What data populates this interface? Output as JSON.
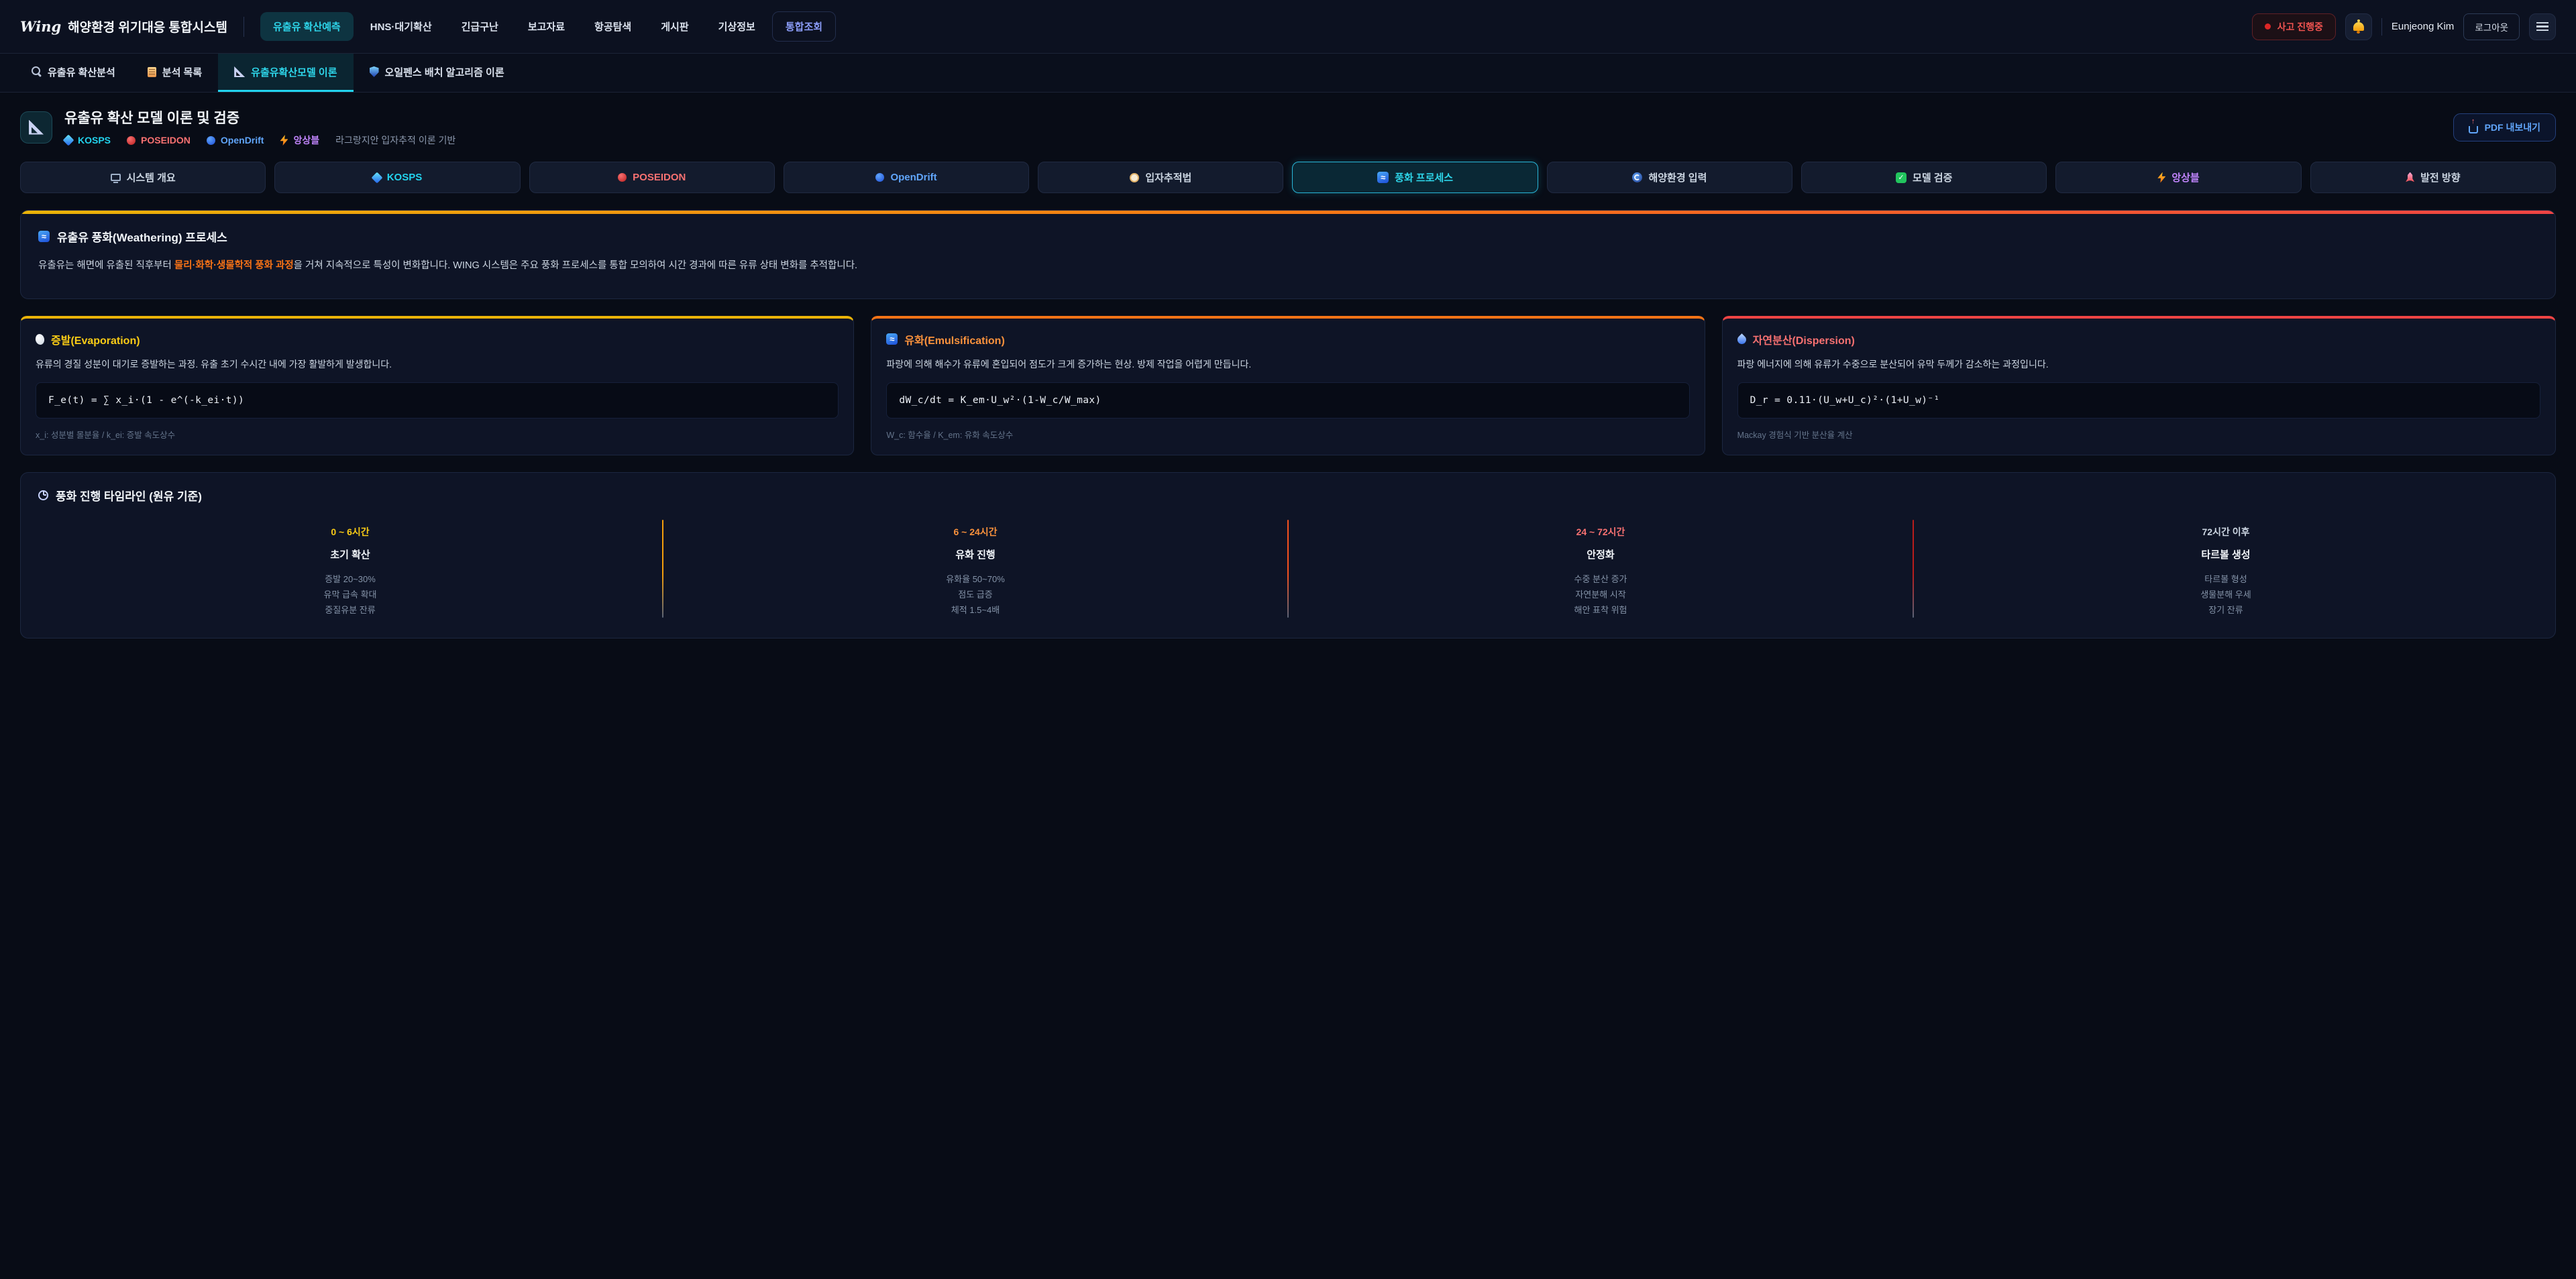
{
  "topnav": {
    "brand": "Wing",
    "system_title": "해양환경 위기대응 통합시스템",
    "items": [
      {
        "label": "유출유 확산예측"
      },
      {
        "label": "HNS·대기확산"
      },
      {
        "label": "긴급구난"
      },
      {
        "label": "보고자료"
      },
      {
        "label": "항공탐색"
      },
      {
        "label": "게시판"
      },
      {
        "label": "기상정보"
      },
      {
        "label": "통합조회"
      }
    ],
    "incident_badge": "사고 진행중",
    "bell_icon": "bell-icon",
    "user_name": "Eunjeong Kim",
    "logout_label": "로그아웃",
    "menu_icon": "hamburger-menu-icon"
  },
  "subnav": {
    "tabs": [
      {
        "icon": "microscope-icon",
        "label": "유출유 확산분석"
      },
      {
        "icon": "notepad-icon",
        "label": "분석 목록"
      },
      {
        "icon": "triangle-ruler-icon",
        "label": "유출유확산모델 이론"
      },
      {
        "icon": "shield-icon",
        "label": "오일펜스 배치 알고리즘 이론"
      }
    ]
  },
  "page_header": {
    "icon": "triangle-ruler-icon",
    "title": "유출유 확산 모델 이론 및 검증",
    "badges": [
      {
        "icon": "diamond-icon",
        "label": "KOSPS",
        "color": "#22d3ee"
      },
      {
        "icon": "red-circle-icon",
        "label": "POSEIDON",
        "color": "#f87171"
      },
      {
        "icon": "blue-circle-icon",
        "label": "OpenDrift",
        "color": "#60a5fa"
      },
      {
        "icon": "lightning-icon",
        "label": "앙상블",
        "color": "#c084fc"
      }
    ],
    "subtitle": "라그랑지안 입자추적 이론 기반",
    "pdf_button": "PDF 내보내기"
  },
  "model_tabs": [
    {
      "icon": "monitor-icon",
      "label": "시스템 개요",
      "color": "#cbd5e1"
    },
    {
      "icon": "diamond-icon",
      "label": "KOSPS",
      "color": "#22d3ee"
    },
    {
      "icon": "red-circle-icon",
      "label": "POSEIDON",
      "color": "#f87171"
    },
    {
      "icon": "blue-circle-icon",
      "label": "OpenDrift",
      "color": "#60a5fa"
    },
    {
      "icon": "compass-icon",
      "label": "입자추적법",
      "color": "#cbd5e1"
    },
    {
      "icon": "wave-icon",
      "label": "풍화 프로세스",
      "color": "#2dd4e8"
    },
    {
      "icon": "swirl-icon",
      "label": "해양환경 입력",
      "color": "#cbd5e1"
    },
    {
      "icon": "check-icon",
      "label": "모델 검증",
      "color": "#cbd5e1"
    },
    {
      "icon": "lightning-icon",
      "label": "앙상블",
      "color": "#c084fc"
    },
    {
      "icon": "rocket-icon",
      "label": "발전 방향",
      "color": "#cbd5e1"
    }
  ],
  "weathering": {
    "icon": "wave-icon",
    "title": "유출유 풍화(Weathering) 프로세스",
    "desc_before": "유출유는 해면에 유출된 직후부터 ",
    "desc_highlight": "물리·화학·생물학적 풍화 과정",
    "desc_after": "을 거쳐 지속적으로 특성이 변화합니다. WING 시스템은 주요 풍화 프로세스를 통합 모의하여 시간 경과에 따른 유류 상태 변화를 추적합니다.",
    "highlight_color": "#f97316"
  },
  "process_cards": [
    {
      "icon": "evaporation-icon",
      "title": "증발(Evaporation)",
      "title_color": "#facc15",
      "border_color": "#eab308",
      "desc": "유류의 경질 성분이 대기로 증발하는 과정. 유출 초기 수시간 내에 가장 활발하게 발생합니다.",
      "formula": "F_e(t) = ∑ x_i·(1 - e^(-k_ei·t))",
      "note": "x_i: 성분별 몰분율 / k_ei: 증발 속도상수"
    },
    {
      "icon": "wave-icon",
      "title": "유화(Emulsification)",
      "title_color": "#fb923c",
      "border_color": "#f97316",
      "desc": "파랑에 의해 해수가 유류에 혼입되어 점도가 크게 증가하는 현상. 방제 작업을 어렵게 만듭니다.",
      "formula": "dW_c/dt = K_em·U_w²·(1-W_c/W_max)",
      "note": "W_c: 함수율 / K_em: 유화 속도상수"
    },
    {
      "icon": "droplet-icon",
      "title": "자연분산(Dispersion)",
      "title_color": "#f87171",
      "border_color": "#ef4444",
      "desc": "파랑 에너지에 의해 유류가 수중으로 분산되어 유막 두께가 감소하는 과정입니다.",
      "formula": "D_r = 0.11·(U_w+U_c)²·(1+U_w)⁻¹",
      "note": "Mackay 경험식 기반 분산율 계산"
    }
  ],
  "timeline": {
    "icon": "clock-icon",
    "title": "풍화 진행 타임라인 (원유 기준)",
    "divider_colors": [
      "#f59e0b",
      "#f4511e",
      "#b91c1c"
    ],
    "phases": [
      {
        "time": "0 ~ 6시간",
        "time_color": "#facc15",
        "name": "초기 확산",
        "details": [
          "증발 20~30%",
          "유막 급속 확대",
          "중질유분 잔류"
        ]
      },
      {
        "time": "6 ~ 24시간",
        "time_color": "#fb923c",
        "name": "유화 진행",
        "details": [
          "유화율 50~70%",
          "점도 급증",
          "체적 1.5~4배"
        ]
      },
      {
        "time": "24 ~ 72시간",
        "time_color": "#f87171",
        "name": "안정화",
        "details": [
          "수중 분산 증가",
          "자연분해 시작",
          "해안 표착 위험"
        ]
      },
      {
        "time": "72시간 이후",
        "time_color": "#cbd5e1",
        "name": "타르볼 생성",
        "details": [
          "타르볼 형성",
          "생물분해 우세",
          "장기 잔류"
        ]
      }
    ]
  }
}
